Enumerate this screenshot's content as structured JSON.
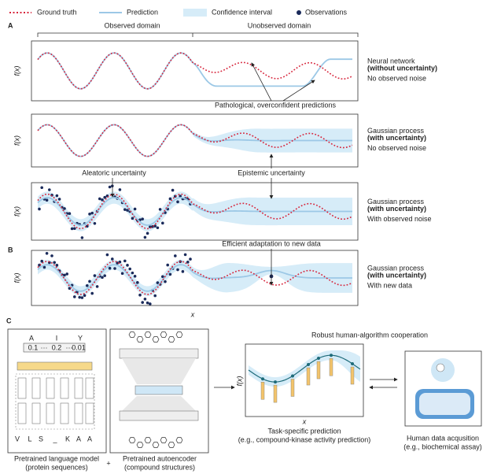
{
  "legend": [
    "Ground truth",
    "Prediction",
    "Confidence interval",
    "Observations"
  ],
  "panel_a": {
    "label": "A",
    "observed_domain": "Observed domain",
    "unobserved_domain": "Unobserved domain"
  },
  "panels": [
    {
      "y_label": "f(x)",
      "model": "Neural network",
      "uncertainty": "(without uncertainty)",
      "condition": "No observed noise"
    },
    {
      "y_label": "f(x)",
      "model": "Gaussian process",
      "uncertainty": "(with uncertainty)",
      "condition": "No observed noise"
    },
    {
      "y_label": "f(x)",
      "model": "Gaussian process",
      "uncertainty": "(with uncertainty)",
      "condition": "With observed noise"
    },
    {
      "y_label": "f(x)",
      "model": "Gaussian process",
      "uncertainty": "(with uncertainty)",
      "condition": "With new data"
    }
  ],
  "annotations": {
    "pathological": "Pathological, overconfident predictions",
    "aleatoric": "Aleatoric uncertainty",
    "epistemic": "Epistemic uncertainty",
    "adaptation": "Efficient adaptation to new data"
  },
  "panel_b_label": "B",
  "x_label": "x",
  "panel_c": {
    "label": "C",
    "tokens_top": [
      "A",
      "I",
      "Y"
    ],
    "probabilities": [
      "0.1",
      "···",
      "0.2",
      "···",
      "0.01"
    ],
    "sequence": [
      "V",
      "L",
      "S",
      "_",
      "K",
      "A",
      "A"
    ],
    "language_model": {
      "title": "Pretrained language model",
      "subtitle": "(protein sequences)"
    },
    "plus": "+",
    "autoencoder": {
      "title": "Pretrained autoencoder",
      "subtitle": "(compound structures)"
    },
    "cooperation": "Robust human-algorithm cooperation",
    "plot_y_label": "f(x)",
    "plot_x_label": "x",
    "prediction": {
      "title": "Task-specific prediction",
      "subtitle": "(e.g., compound-kinase activity prediction)"
    },
    "human": {
      "title": "Human data acqusition",
      "subtitle": "(e.g., biochemical assay)"
    }
  }
}
